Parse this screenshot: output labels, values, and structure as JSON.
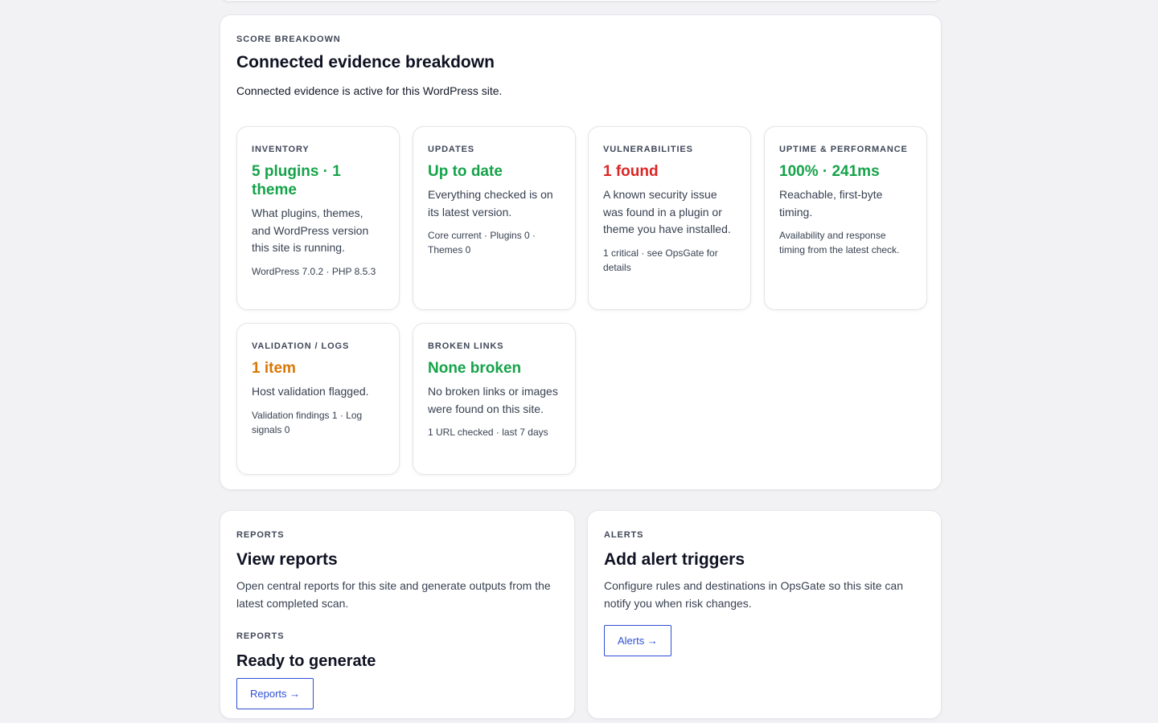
{
  "breakdown": {
    "eyebrow": "SCORE BREAKDOWN",
    "title": "Connected evidence breakdown",
    "description": "Connected evidence is active for this WordPress site.",
    "tiles": [
      {
        "label": "INVENTORY",
        "value": "5 plugins · 1 theme",
        "status_color": "#16a34a",
        "description": "What plugins, themes, and WordPress version this site is running.",
        "meta": "WordPress 7.0.2 · PHP 8.5.3"
      },
      {
        "label": "UPDATES",
        "value": "Up to date",
        "status_color": "#16a34a",
        "description": "Everything checked is on its latest version.",
        "meta": "Core current · Plugins 0 · Themes 0"
      },
      {
        "label": "VULNERABILITIES",
        "value": "1 found",
        "status_color": "#dc2626",
        "description": "A known security issue was found in a plugin or theme you have installed.",
        "meta": "1 critical · see OpsGate for details"
      },
      {
        "label": "UPTIME & PERFORMANCE",
        "value": "100% · 241ms",
        "status_color": "#16a34a",
        "description": "Reachable, first-byte timing.",
        "meta": "Availability and response timing from the latest check."
      },
      {
        "label": "VALIDATION / LOGS",
        "value": "1 item",
        "status_color": "#d97706",
        "description": "Host validation flagged.",
        "meta": "Validation findings 1 · Log signals 0"
      },
      {
        "label": "BROKEN LINKS",
        "value": "None broken",
        "status_color": "#16a34a",
        "description": "No broken links or images were found on this site.",
        "meta": "1 URL checked · last 7 days"
      }
    ]
  },
  "reports": {
    "eyebrow": "REPORTS",
    "title": "View reports",
    "description": "Open central reports for this site and generate outputs from the latest completed scan.",
    "status_eyebrow": "REPORTS",
    "status_title": "Ready to generate",
    "button_label": "Reports →"
  },
  "alerts": {
    "eyebrow": "ALERTS",
    "title": "Add alert triggers",
    "description": "Configure rules and destinations in OpsGate so this site can notify you when risk changes.",
    "button_label": "Alerts →"
  },
  "colors": {
    "accent": "#2f4fd3",
    "ok": "#16a34a",
    "danger": "#dc2626",
    "warning": "#d97706"
  }
}
